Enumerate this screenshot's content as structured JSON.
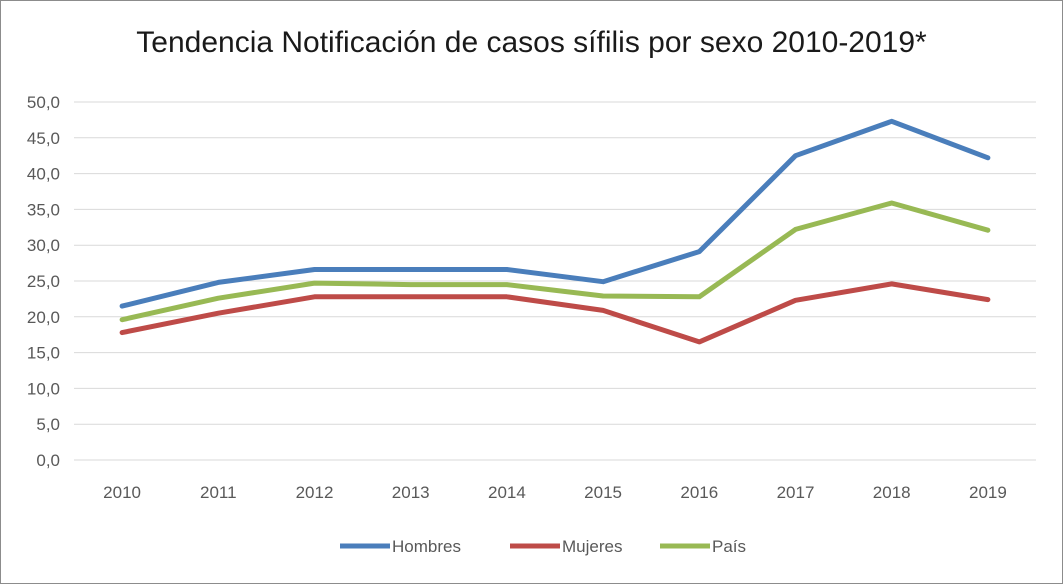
{
  "chart_data": {
    "type": "line",
    "title": "Tendencia  Notificación de casos sífilis por sexo 2010-2019*",
    "xlabel": "",
    "ylabel": "",
    "categories": [
      "2010",
      "2011",
      "2012",
      "2013",
      "2014",
      "2015",
      "2016",
      "2017",
      "2018",
      "2019"
    ],
    "ylim": [
      0,
      50
    ],
    "yticks": [
      "0,0",
      "5,0",
      "10,0",
      "15,0",
      "20,0",
      "25,0",
      "30,0",
      "35,0",
      "40,0",
      "45,0",
      "50,0"
    ],
    "grid": true,
    "legend_position": "bottom",
    "series": [
      {
        "name": "Hombres",
        "color": "#4a7ebb",
        "values": [
          21.5,
          24.8,
          26.6,
          26.6,
          26.6,
          24.9,
          29.1,
          42.5,
          47.3,
          42.2
        ]
      },
      {
        "name": "Mujeres",
        "color": "#be4b48",
        "values": [
          17.8,
          20.5,
          22.8,
          22.8,
          22.8,
          20.9,
          16.5,
          22.3,
          24.6,
          22.4
        ]
      },
      {
        "name": "País",
        "color": "#98b954",
        "values": [
          19.6,
          22.6,
          24.7,
          24.5,
          24.5,
          22.9,
          22.8,
          32.2,
          35.9,
          32.1
        ]
      }
    ]
  }
}
